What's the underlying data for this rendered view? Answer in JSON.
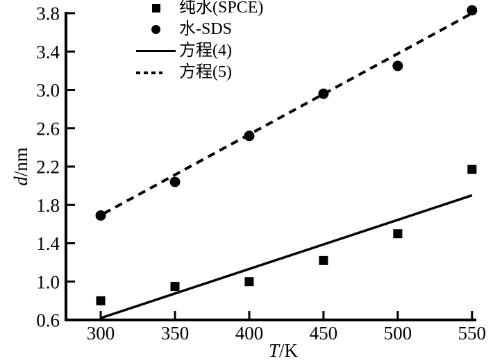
{
  "chart_data": {
    "type": "scatter",
    "title": "",
    "xlabel_italic": "T",
    "xlabel_unit": "/K",
    "ylabel_italic": "d",
    "ylabel_unit": "/nm",
    "xlim": [
      276.6,
      552.9
    ],
    "ylim": [
      0.6,
      3.8
    ],
    "x_ticks": [
      300,
      350,
      400,
      450,
      500,
      550
    ],
    "y_ticks": [
      0.6,
      1.0,
      1.4,
      1.8,
      2.2,
      2.6,
      3.0,
      3.4,
      3.8
    ],
    "grid": false,
    "legend_position": "upper-left-inside",
    "series": [
      {
        "name": "纯水(SPCE)",
        "marker": "square",
        "x": [
          300,
          350,
          400,
          450,
          500,
          550
        ],
        "y": [
          0.8,
          0.95,
          1.0,
          1.22,
          1.5,
          2.17
        ]
      },
      {
        "name": "水-SDS",
        "marker": "circle",
        "x": [
          300,
          350,
          400,
          450,
          500,
          550
        ],
        "y": [
          1.69,
          2.04,
          2.52,
          2.96,
          3.25,
          3.83
        ]
      }
    ],
    "lines": [
      {
        "name": "方程(4)",
        "style": "solid",
        "x": [
          300,
          550
        ],
        "y": [
          0.62,
          1.9
        ]
      },
      {
        "name": "方程(5)",
        "style": "dashed",
        "x": [
          302,
          549
        ],
        "y": [
          1.71,
          3.79
        ]
      }
    ],
    "colors": {
      "foreground": "#000000",
      "background": "#ffffff"
    }
  },
  "legend": {
    "items": [
      {
        "label": "纯水(SPCE)",
        "marker": "square"
      },
      {
        "label": "水-SDS",
        "marker": "circle"
      },
      {
        "label": "方程(4)",
        "marker": "solid-line"
      },
      {
        "label": "方程(5)",
        "marker": "dashed-line"
      }
    ]
  }
}
